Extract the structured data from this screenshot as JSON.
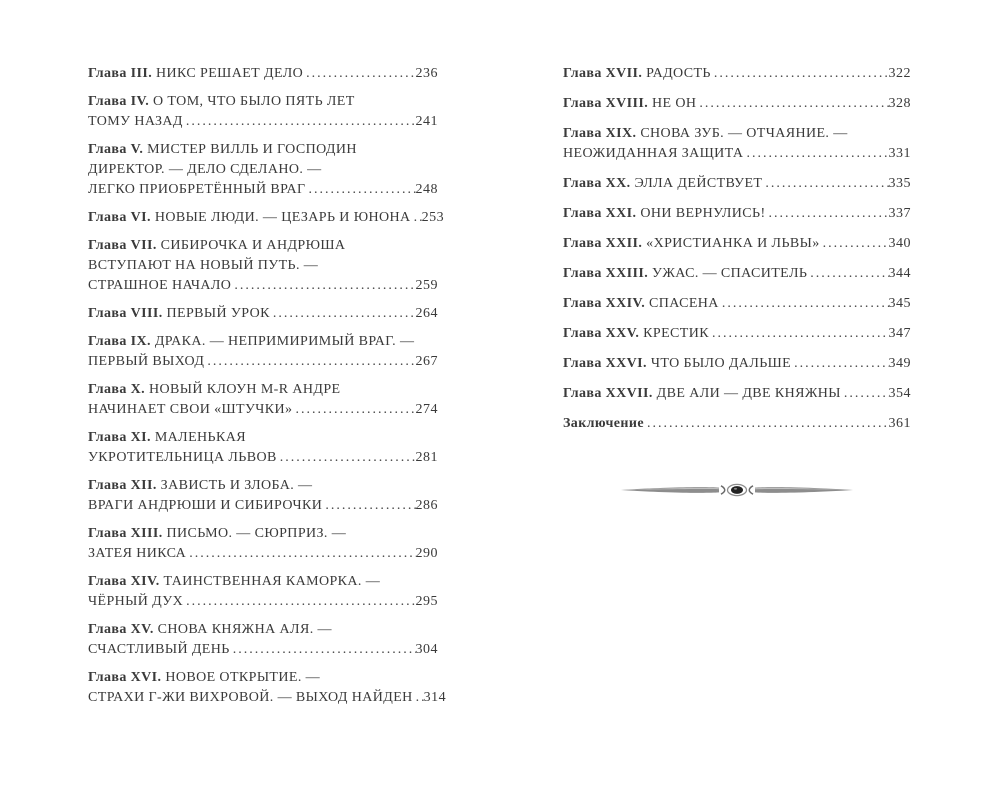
{
  "page": {
    "kind": "book-table-of-contents",
    "text_color": "#3a3a3a",
    "background_color": "#ffffff",
    "ornament_icon": "spindle-divider-ornament",
    "left_column": [
      {
        "prefix": "Глава III.",
        "lines": [
          "НИКС РЕШАЕТ ДЕЛО"
        ],
        "page": "236"
      },
      {
        "prefix": "Глава IV.",
        "lines": [
          "О ТОМ, ЧТО БЫЛО ПЯТЬ ЛЕТ",
          "ТОМУ НАЗАД"
        ],
        "page": "241"
      },
      {
        "prefix": "Глава V.",
        "lines": [
          "МИСТЕР ВИЛЛЬ И ГОСПОДИН",
          "ДИРЕКТОР. — ДЕЛО СДЕЛАНО. —",
          "ЛЕГКО ПРИОБРЕТЁННЫЙ ВРАГ"
        ],
        "page": "248"
      },
      {
        "prefix": "Глава VI.",
        "lines": [
          "НОВЫЕ ЛЮДИ. — ЦЕЗАРЬ И ЮНОНА"
        ],
        "page": "253"
      },
      {
        "prefix": "Глава VII.",
        "lines": [
          "СИБИРОЧКА И АНДРЮША",
          "ВСТУПАЮТ НА НОВЫЙ ПУТЬ. —",
          "СТРАШНОЕ НАЧАЛО"
        ],
        "page": "259"
      },
      {
        "prefix": "Глава VIII.",
        "lines": [
          "ПЕРВЫЙ УРОК"
        ],
        "page": "264"
      },
      {
        "prefix": "Глава IX.",
        "lines": [
          "ДРАКА. — НЕПРИМИРИМЫЙ ВРАГ. —",
          "ПЕРВЫЙ ВЫХОД"
        ],
        "page": "267"
      },
      {
        "prefix": "Глава X.",
        "lines": [
          "НОВЫЙ КЛОУН M-R АНДРЕ",
          "НАЧИНАЕТ СВОИ «ШТУЧКИ»"
        ],
        "page": "274"
      },
      {
        "prefix": "Глава XI.",
        "lines": [
          "МАЛЕНЬКАЯ",
          "УКРОТИТЕЛЬНИЦА ЛЬВОВ"
        ],
        "page": "281"
      },
      {
        "prefix": "Глава XII.",
        "lines": [
          "ЗАВИСТЬ И ЗЛОБА. —",
          "ВРАГИ АНДРЮШИ И СИБИРОЧКИ"
        ],
        "page": "286"
      },
      {
        "prefix": "Глава XIII.",
        "lines": [
          "ПИСЬМО. — СЮРПРИЗ. —",
          "ЗАТЕЯ НИКСА"
        ],
        "page": "290"
      },
      {
        "prefix": "Глава XIV.",
        "lines": [
          "ТАИНСТВЕННАЯ КАМОРКА. —",
          "ЧЁРНЫЙ ДУХ"
        ],
        "page": "295"
      },
      {
        "prefix": "Глава XV.",
        "lines": [
          "СНОВА КНЯЖНА АЛЯ. —",
          "СЧАСТЛИВЫЙ ДЕНЬ"
        ],
        "page": "304"
      },
      {
        "prefix": "Глава XVI.",
        "lines": [
          "НОВОЕ ОТКРЫТИЕ. —",
          "СТРАХИ Г-ЖИ ВИХРОВОЙ. — ВЫХОД НАЙДЕН"
        ],
        "page": "314"
      }
    ],
    "right_column": [
      {
        "prefix": "Глава XVII.",
        "lines": [
          "РАДОСТЬ"
        ],
        "page": "322"
      },
      {
        "prefix": "Глава XVIII.",
        "lines": [
          "НЕ ОН"
        ],
        "page": "328"
      },
      {
        "prefix": "Глава XIX.",
        "lines": [
          "СНОВА ЗУБ. — ОТЧАЯНИЕ. —",
          "НЕОЖИДАННАЯ ЗАЩИТА"
        ],
        "page": "331"
      },
      {
        "prefix": "Глава XX.",
        "lines": [
          "ЭЛЛА ДЕЙСТВУЕТ"
        ],
        "page": "335"
      },
      {
        "prefix": "Глава XXI.",
        "lines": [
          "ОНИ ВЕРНУЛИСЬ!"
        ],
        "page": "337"
      },
      {
        "prefix": "Глава XXII.",
        "lines": [
          "«ХРИСТИАНКА И ЛЬВЫ»"
        ],
        "page": "340"
      },
      {
        "prefix": "Глава XXIII.",
        "lines": [
          "УЖАС. — СПАСИТЕЛЬ"
        ],
        "page": "344"
      },
      {
        "prefix": "Глава XXIV.",
        "lines": [
          "СПАСЕНА"
        ],
        "page": "345"
      },
      {
        "prefix": "Глава XXV.",
        "lines": [
          "КРЕСТИК"
        ],
        "page": "347"
      },
      {
        "prefix": "Глава XXVI.",
        "lines": [
          "ЧТО БЫЛО ДАЛЬШЕ"
        ],
        "page": "349"
      },
      {
        "prefix": "Глава XXVII.",
        "lines": [
          "ДВЕ АЛИ — ДВЕ КНЯЖНЫ"
        ],
        "page": "354"
      },
      {
        "prefix": "Заключение",
        "lines": [
          ""
        ],
        "page": "361"
      }
    ]
  }
}
